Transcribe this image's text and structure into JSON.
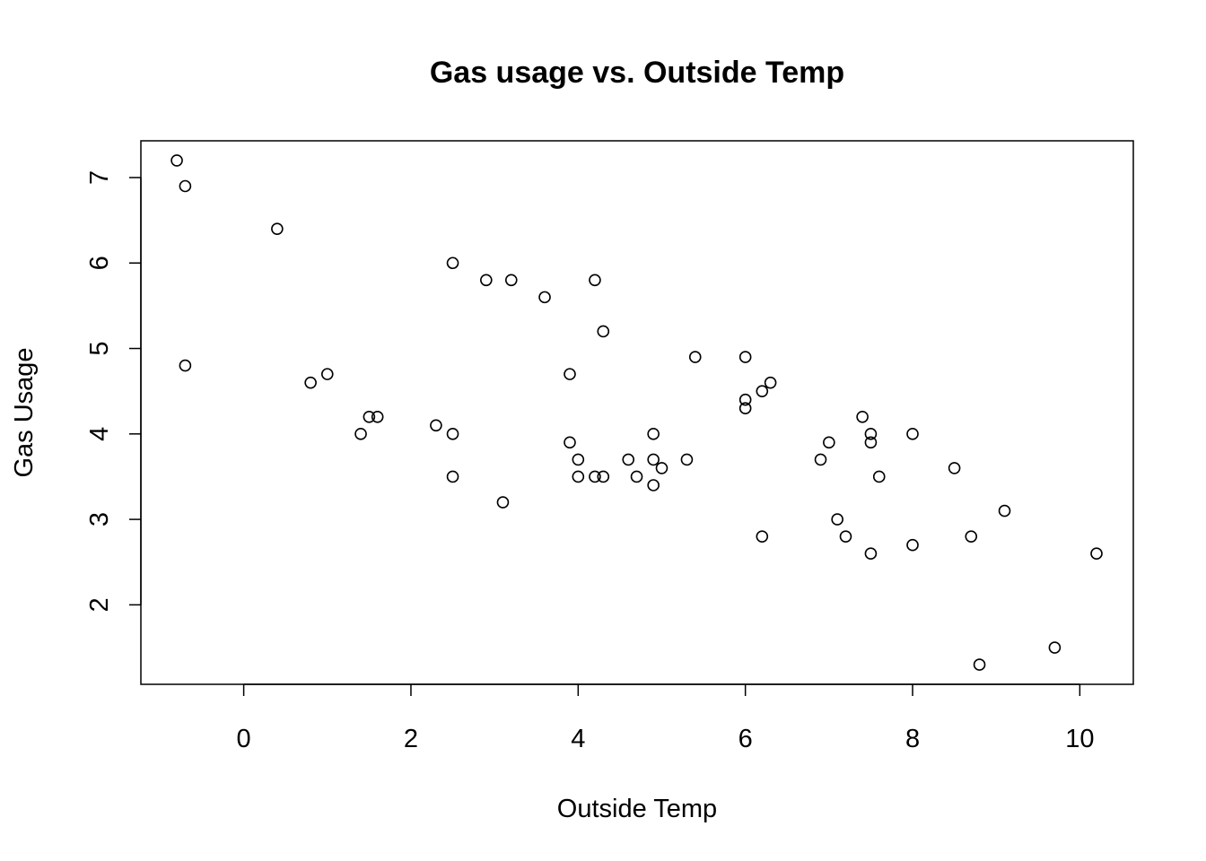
{
  "chart_data": {
    "type": "scatter",
    "title": "Gas usage vs. Outside Temp",
    "xlabel": "Outside Temp",
    "ylabel": "Gas Usage",
    "xlim": [
      -1.23,
      10.64
    ],
    "ylim": [
      1.07,
      7.43
    ],
    "x_ticks": [
      0,
      2,
      4,
      6,
      8,
      10
    ],
    "y_ticks": [
      2,
      3,
      4,
      5,
      6,
      7
    ],
    "x_tick_labels": [
      "0",
      "2",
      "4",
      "6",
      "8",
      "10"
    ],
    "y_tick_labels": [
      "2",
      "3",
      "4",
      "5",
      "6",
      "7"
    ],
    "grid": false,
    "legend": "none",
    "marker": "open-circle",
    "color": "#000000",
    "points": [
      {
        "x": -0.8,
        "y": 7.2
      },
      {
        "x": -0.7,
        "y": 6.9
      },
      {
        "x": 0.4,
        "y": 6.4
      },
      {
        "x": 2.5,
        "y": 6.0
      },
      {
        "x": 2.9,
        "y": 5.8
      },
      {
        "x": 3.2,
        "y": 5.8
      },
      {
        "x": 3.6,
        "y": 5.6
      },
      {
        "x": 3.9,
        "y": 4.7
      },
      {
        "x": 4.2,
        "y": 5.8
      },
      {
        "x": 4.3,
        "y": 5.2
      },
      {
        "x": 5.4,
        "y": 4.9
      },
      {
        "x": 6.0,
        "y": 4.9
      },
      {
        "x": 6.0,
        "y": 4.4
      },
      {
        "x": 6.0,
        "y": 4.3
      },
      {
        "x": 6.2,
        "y": 4.5
      },
      {
        "x": 6.3,
        "y": 4.6
      },
      {
        "x": -0.7,
        "y": 4.8
      },
      {
        "x": 0.8,
        "y": 4.6
      },
      {
        "x": 1.0,
        "y": 4.7
      },
      {
        "x": 1.4,
        "y": 4.0
      },
      {
        "x": 1.5,
        "y": 4.2
      },
      {
        "x": 1.6,
        "y": 4.2
      },
      {
        "x": 2.3,
        "y": 4.1
      },
      {
        "x": 2.5,
        "y": 4.0
      },
      {
        "x": 2.5,
        "y": 3.5
      },
      {
        "x": 3.1,
        "y": 3.2
      },
      {
        "x": 3.9,
        "y": 3.9
      },
      {
        "x": 4.0,
        "y": 3.7
      },
      {
        "x": 4.0,
        "y": 3.5
      },
      {
        "x": 4.2,
        "y": 3.5
      },
      {
        "x": 4.3,
        "y": 3.5
      },
      {
        "x": 4.6,
        "y": 3.7
      },
      {
        "x": 4.7,
        "y": 3.5
      },
      {
        "x": 4.9,
        "y": 4.0
      },
      {
        "x": 4.9,
        "y": 3.7
      },
      {
        "x": 4.9,
        "y": 3.4
      },
      {
        "x": 5.0,
        "y": 3.6
      },
      {
        "x": 5.3,
        "y": 3.7
      },
      {
        "x": 6.2,
        "y": 2.8
      },
      {
        "x": 6.9,
        "y": 3.7
      },
      {
        "x": 7.0,
        "y": 3.9
      },
      {
        "x": 7.1,
        "y": 3.0
      },
      {
        "x": 7.2,
        "y": 2.8
      },
      {
        "x": 7.4,
        "y": 4.2
      },
      {
        "x": 7.5,
        "y": 4.0
      },
      {
        "x": 7.5,
        "y": 3.9
      },
      {
        "x": 7.5,
        "y": 2.6
      },
      {
        "x": 7.6,
        "y": 3.5
      },
      {
        "x": 8.0,
        "y": 4.0
      },
      {
        "x": 8.0,
        "y": 2.7
      },
      {
        "x": 8.5,
        "y": 3.6
      },
      {
        "x": 8.7,
        "y": 2.8
      },
      {
        "x": 8.8,
        "y": 1.3
      },
      {
        "x": 9.1,
        "y": 3.1
      },
      {
        "x": 9.7,
        "y": 1.5
      },
      {
        "x": 10.2,
        "y": 2.6
      }
    ]
  }
}
